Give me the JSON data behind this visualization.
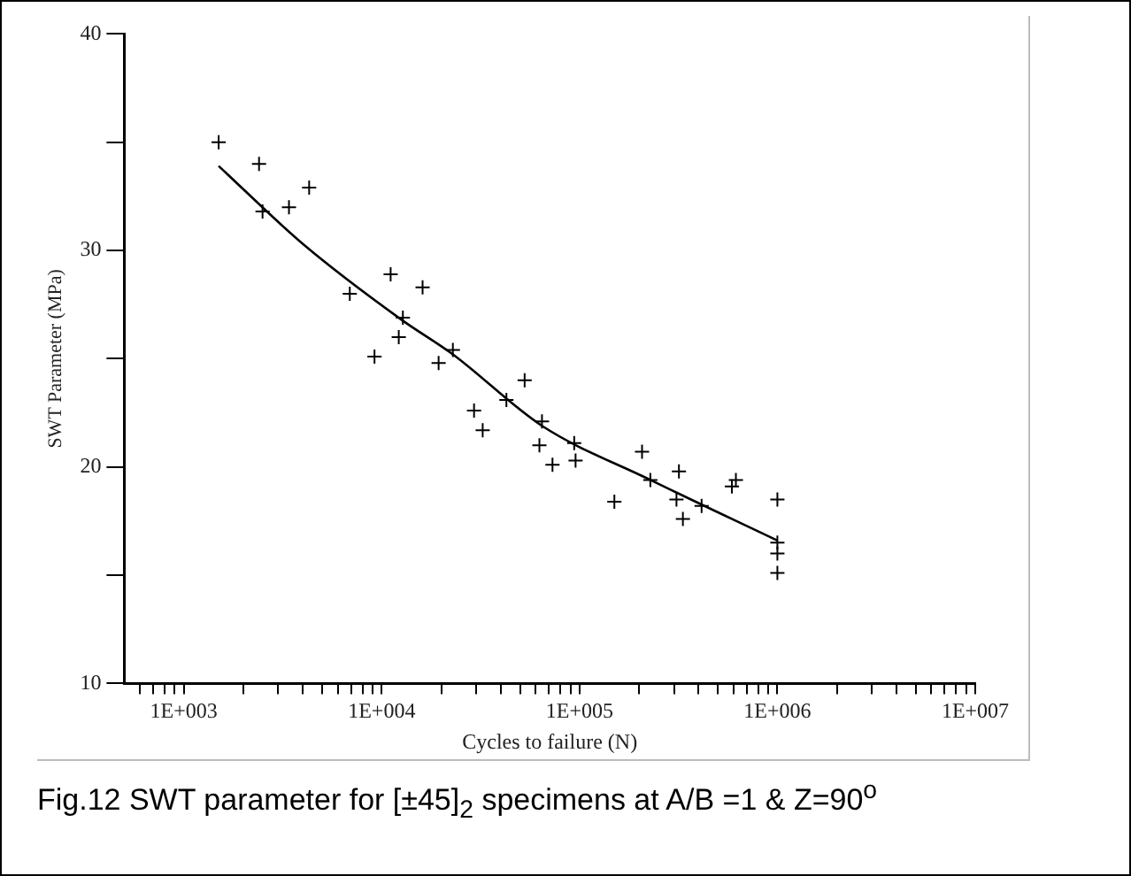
{
  "chart_data": {
    "type": "scatter",
    "xlabel": "Cycles to failure (N)",
    "ylabel": "SWT Parameter (MPa)",
    "annotations": [
      "Fig.12 SWT parameter for [±45]$_{2}$ specimens at A/B =1 & Z=90$^{o}$"
    ],
    "log": "x",
    "grid": false,
    "legend": false,
    "marker": "cross",
    "xlim": [
      500,
      10000000
    ],
    "xticks": [
      {
        "value": 600,
        "label": null
      },
      {
        "value": 700,
        "label": null
      },
      {
        "value": 800,
        "label": null
      },
      {
        "value": 900,
        "label": null
      },
      {
        "value": 1000,
        "label": "1E+003"
      },
      {
        "value": 2000,
        "label": null
      },
      {
        "value": 3000,
        "label": null
      },
      {
        "value": 4000,
        "label": null
      },
      {
        "value": 5000,
        "label": null
      },
      {
        "value": 6000,
        "label": null
      },
      {
        "value": 7000,
        "label": null
      },
      {
        "value": 8000,
        "label": null
      },
      {
        "value": 9000,
        "label": null
      },
      {
        "value": 10000,
        "label": "1E+004"
      },
      {
        "value": 20000,
        "label": null
      },
      {
        "value": 30000,
        "label": null
      },
      {
        "value": 40000,
        "label": null
      },
      {
        "value": 50000,
        "label": null
      },
      {
        "value": 60000,
        "label": null
      },
      {
        "value": 70000,
        "label": null
      },
      {
        "value": 80000,
        "label": null
      },
      {
        "value": 90000,
        "label": null
      },
      {
        "value": 100000,
        "label": "1E+005"
      },
      {
        "value": 200000,
        "label": null
      },
      {
        "value": 300000,
        "label": null
      },
      {
        "value": 400000,
        "label": null
      },
      {
        "value": 500000,
        "label": null
      },
      {
        "value": 600000,
        "label": null
      },
      {
        "value": 700000,
        "label": null
      },
      {
        "value": 800000,
        "label": null
      },
      {
        "value": 900000,
        "label": null
      },
      {
        "value": 1000000,
        "label": "1E+006"
      },
      {
        "value": 2000000,
        "label": null
      },
      {
        "value": 3000000,
        "label": null
      },
      {
        "value": 4000000,
        "label": null
      },
      {
        "value": 5000000,
        "label": null
      },
      {
        "value": 6000000,
        "label": null
      },
      {
        "value": 7000000,
        "label": null
      },
      {
        "value": 8000000,
        "label": null
      },
      {
        "value": 9000000,
        "label": null
      },
      {
        "value": 10000000,
        "label": "1E+007"
      }
    ],
    "ylim": [
      10,
      40
    ],
    "yticks": [
      10,
      {
        "value": 15,
        "label": null
      },
      20,
      {
        "value": 25,
        "label": null
      },
      30,
      {
        "value": 35,
        "label": null
      },
      40
    ],
    "series": [
      {
        "color": "#000000",
        "x": [
          1500,
          2400,
          2500,
          3400,
          4300,
          6900,
          11100,
          16100,
          9200,
          12200,
          12800,
          19400,
          22900,
          29300,
          32400,
          52800,
          42700,
          62700,
          64600,
          73000,
          94000,
          95500,
          150000,
          207000,
          228000,
          318000,
          309000,
          333000,
          414000,
          589000,
          617000,
          1000000,
          1000000,
          1000000,
          1000000
        ],
        "values": [
          35.0,
          34.0,
          31.8,
          32.0,
          32.9,
          28.0,
          28.9,
          28.3,
          25.1,
          26.0,
          26.9,
          24.8,
          25.4,
          22.6,
          21.7,
          24.0,
          23.1,
          21.0,
          22.1,
          20.1,
          21.1,
          20.3,
          18.4,
          20.7,
          19.4,
          19.8,
          18.5,
          17.6,
          18.2,
          19.1,
          19.4,
          18.5,
          16.5,
          16.0,
          15.1
        ]
      },
      {
        "type": "line",
        "color": "#000000",
        "marker": "none",
        "x": [
          1500,
          4000,
          12600,
          22900,
          64600,
          228000,
          1000000
        ],
        "values": [
          33.9,
          30.3,
          26.8,
          25.2,
          21.9,
          19.4,
          16.6
        ]
      }
    ]
  }
}
